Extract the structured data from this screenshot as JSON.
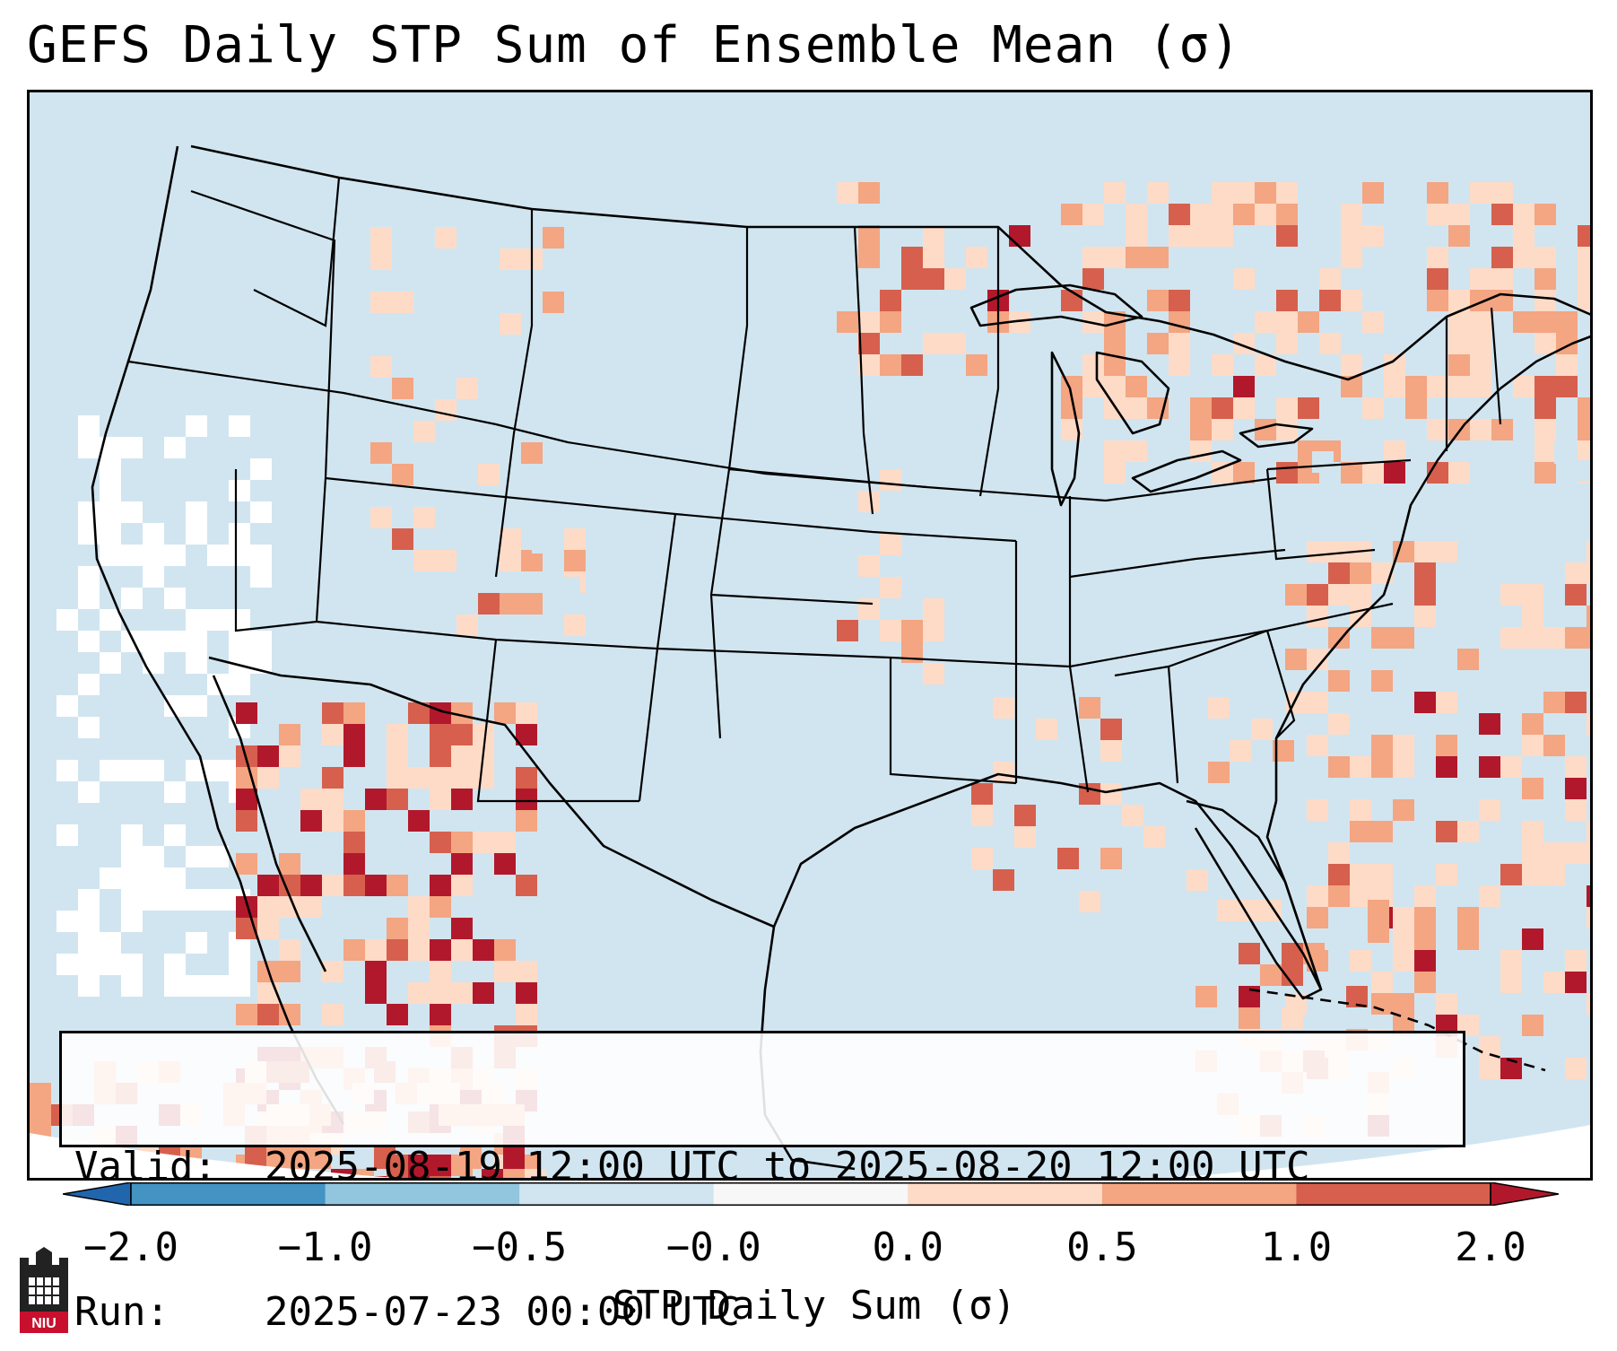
{
  "title": "GEFS Daily STP Sum of Ensemble Mean (σ)",
  "info_box": {
    "valid_label": "Valid:",
    "valid_value": "2025-08-19 12:00 UTC to 2025-08-20 12:00 UTC",
    "run_label": "Run:",
    "run_value": "2025-07-23 00:00 UTC"
  },
  "colorbar": {
    "label": "STP Daily Sum (σ)",
    "ticks": [
      "−2.0",
      "−1.0",
      "−0.5",
      "−0.0",
      "0.0",
      "0.5",
      "1.0",
      "2.0"
    ],
    "colors": [
      "#2166ac",
      "#4393c3",
      "#92c5de",
      "#d1e5f0",
      "#f7f7f7",
      "#fddbc7",
      "#f4a582",
      "#d6604d",
      "#b2182b"
    ]
  },
  "logo": {
    "text": "NIU",
    "icon": "niu-castle-logo"
  },
  "map": {
    "region": "Continental United States, southern Canada, northern Mexico",
    "background_color": "#d1e5f0",
    "land_border_color": "#000000"
  }
}
